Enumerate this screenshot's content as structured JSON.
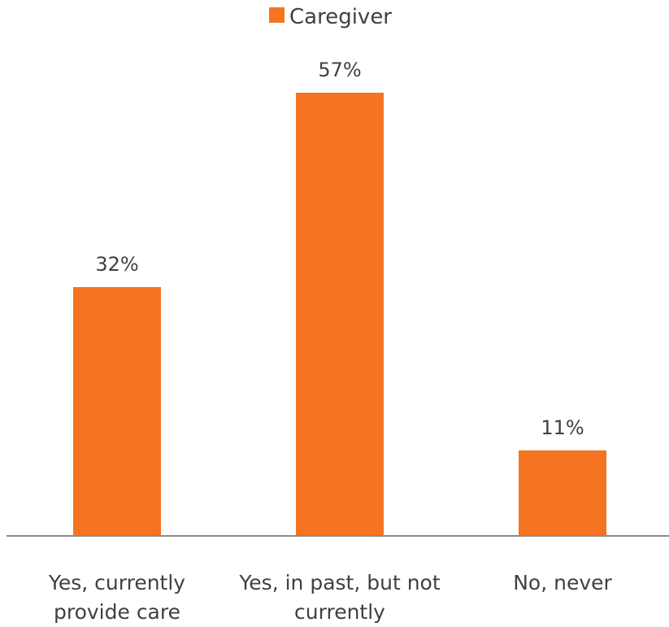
{
  "chart_data": {
    "type": "bar",
    "categories": [
      [
        "Yes, currently",
        "provide care"
      ],
      [
        "Yes, in past, but not",
        "currently"
      ],
      [
        "No, never"
      ]
    ],
    "series": [
      {
        "name": "Caregiver",
        "values": [
          32,
          57,
          11
        ],
        "data_labels": [
          "32%",
          "57%",
          "11%"
        ],
        "color": "#F47421"
      }
    ],
    "ylim": [
      0,
      57
    ],
    "grid": false,
    "legend_position": "top-center",
    "axis_color": "#8C8C8C"
  }
}
